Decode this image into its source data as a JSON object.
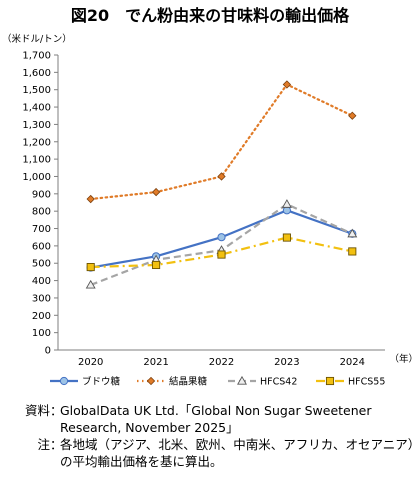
{
  "chart_data": {
    "type": "line",
    "title": "図20　でん粉由来の甘味料の輸出価格",
    "unit_label": "（米ドル/トン）",
    "x_unit_label": "（年）",
    "categories": [
      "2020",
      "2021",
      "2022",
      "2023",
      "2024"
    ],
    "ylim": [
      0,
      1700
    ],
    "y_ticks": [
      "0",
      "100",
      "200",
      "300",
      "400",
      "500",
      "600",
      "700",
      "800",
      "900",
      "1,000",
      "1,100",
      "1,200",
      "1,300",
      "1,400",
      "1,500",
      "1,600",
      "1,700"
    ],
    "grid": false,
    "legend_position": "bottom",
    "series": [
      {
        "name": "ブドウ糖",
        "values": [
          475,
          540,
          650,
          805,
          670
        ],
        "color": "#4472c4",
        "style": "solid",
        "marker": "circle"
      },
      {
        "name": "結晶果糖",
        "values": [
          870,
          910,
          1000,
          1530,
          1350
        ],
        "color": "#e07b28",
        "style": "dotted",
        "marker": "diamond"
      },
      {
        "name": "HFCS42",
        "values": [
          375,
          520,
          575,
          840,
          670
        ],
        "color": "#a5a5a5",
        "style": "dashed",
        "marker": "triangle"
      },
      {
        "name": "HFCS55",
        "values": [
          478,
          490,
          550,
          648,
          568
        ],
        "color": "#f2c010",
        "style": "dashdot",
        "marker": "square"
      }
    ]
  },
  "notes": [
    {
      "label": "資料",
      "text": "GlobalData UK Ltd.「Global Non Sugar Sweetener Research, November 2025」"
    },
    {
      "label": "注",
      "text": "各地域（アジア、北米、欧州、中南米、アフリカ、オセアニア）の平均輸出価格を基に算出。"
    }
  ]
}
